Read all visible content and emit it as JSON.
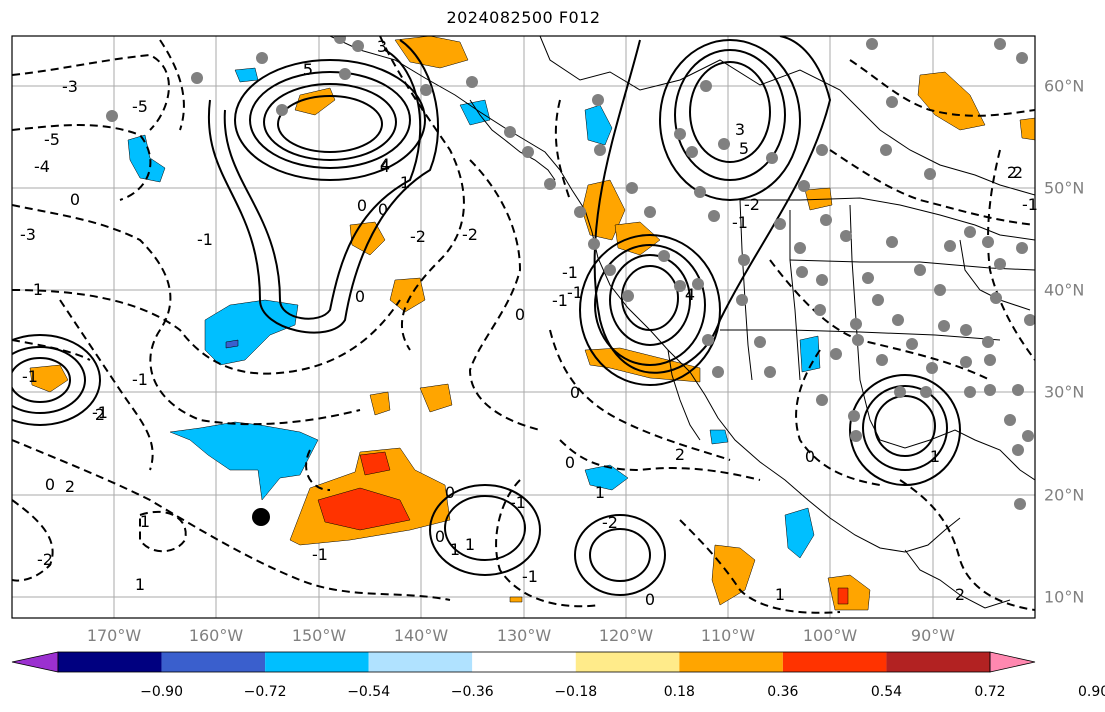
{
  "title": "2024082500 F012",
  "lon_labels": [
    "170°W",
    "160°W",
    "150°W",
    "140°W",
    "130°W",
    "120°W",
    "110°W",
    "100°W",
    "90°W"
  ],
  "lat_labels": [
    "60°N",
    "50°N",
    "40°N",
    "30°N",
    "20°N",
    "10°N"
  ],
  "colorbar": {
    "ticks": [
      "−0.90",
      "−0.72",
      "−0.54",
      "−0.36",
      "−0.18",
      "0.18",
      "0.36",
      "0.54",
      "0.72",
      "0.90"
    ],
    "colors": [
      "#9b30d0",
      "#000080",
      "#3a5fcd",
      "#00bfff",
      "#b0e2ff",
      "#ffffff",
      "#ffeb8a",
      "#ffa500",
      "#ff3300",
      "#b22222",
      "#ff88b0"
    ]
  },
  "contour_labels": [
    "-5",
    "-3",
    "-4",
    "-5",
    "-3",
    "3",
    "5",
    "4",
    "1",
    "0",
    "-2",
    "-1",
    "0",
    "2",
    "1",
    "-2",
    "1",
    "0",
    "-1",
    "0",
    "1",
    "-2",
    "1",
    "0",
    "-1",
    "2",
    "3",
    "4",
    "5",
    "-1",
    "-2",
    "2",
    "-1",
    "0",
    "1",
    "-1",
    "0",
    "-2",
    "-1",
    "0",
    "1",
    "0",
    "-1",
    "0",
    "1",
    "-1",
    "2",
    "4",
    "5",
    "-1",
    "0",
    "1",
    "2",
    "0",
    "-1",
    "0",
    "2",
    "-1",
    "0"
  ]
}
